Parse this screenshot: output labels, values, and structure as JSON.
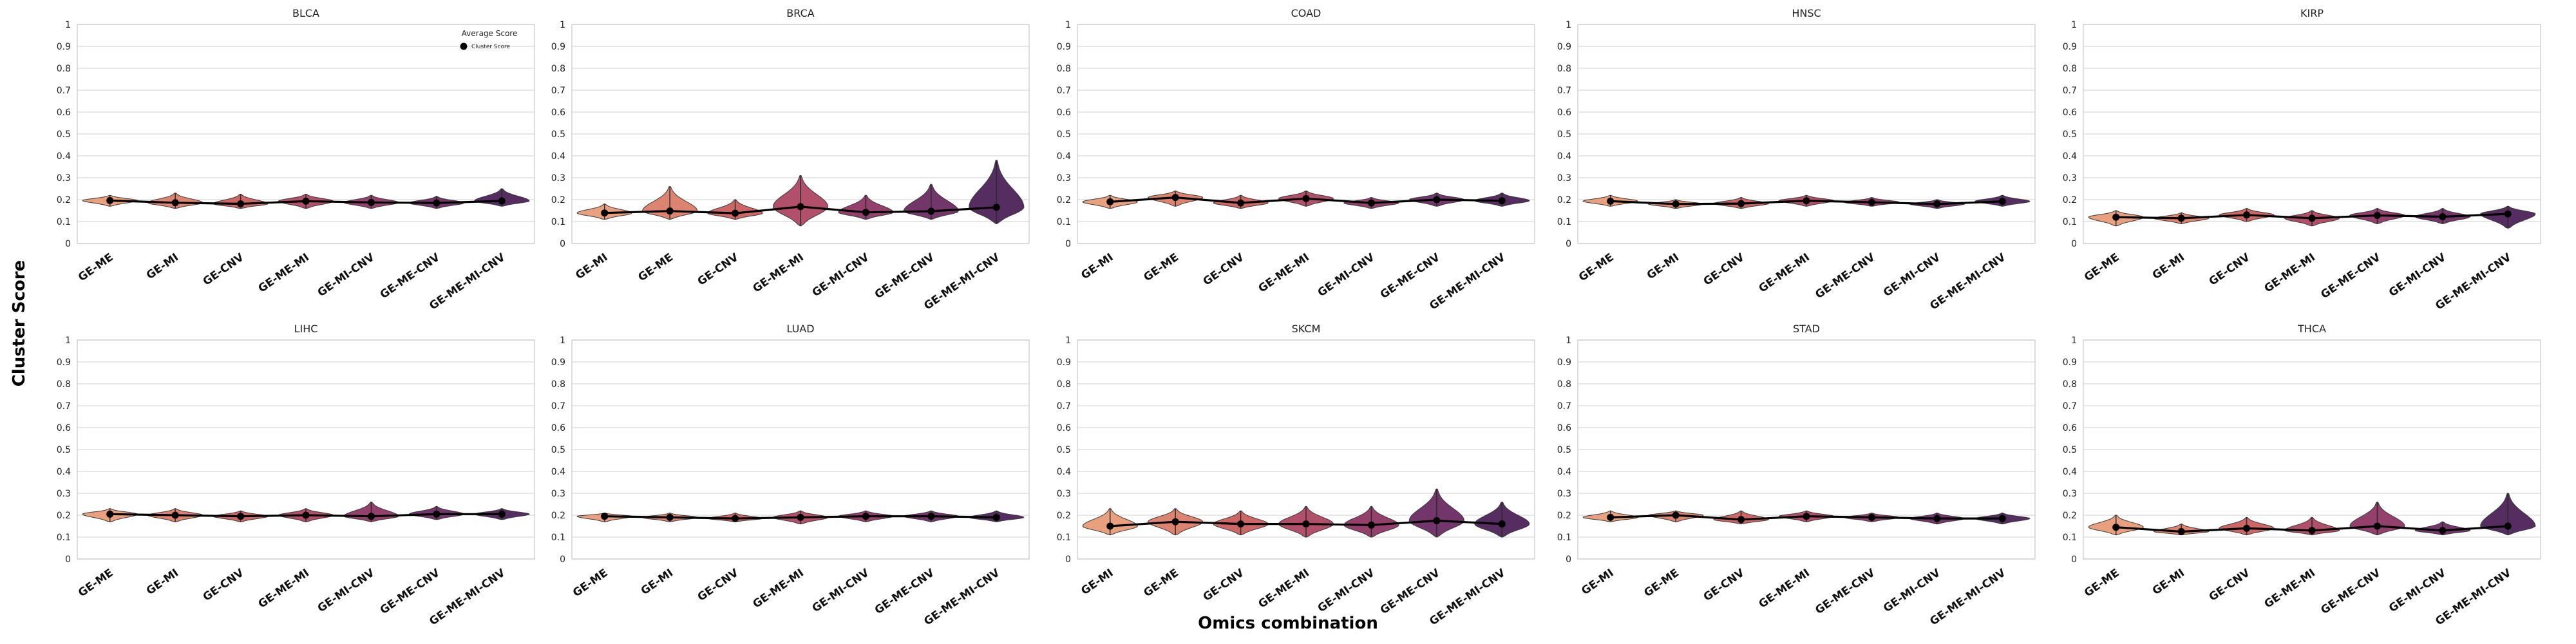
{
  "figure": {
    "ylabel": "Cluster Score",
    "xlabel": "Omics combination",
    "legend": {
      "title": "Average Score",
      "label": "Cluster Score"
    }
  },
  "palette": [
    "#e8a07f",
    "#dc8470",
    "#cc6766",
    "#b24f6a",
    "#93416c",
    "#72366a",
    "#552d61"
  ],
  "chart_data": [
    {
      "type": "violin",
      "title": "BLCA",
      "ylim": [
        0,
        1
      ],
      "yticks": [
        "0",
        "0.1",
        "0.2",
        "0.3",
        "0.4",
        "0.5",
        "0.6",
        "0.7",
        "0.8",
        "0.9",
        "1"
      ],
      "grid": true,
      "legend": "top-right",
      "categories": [
        "GE-ME",
        "GE-MI",
        "GE-CNV",
        "GE-ME-MI",
        "GE-MI-CNV",
        "GE-ME-CNV",
        "GE-ME-MI-CNV"
      ],
      "means": [
        0.196,
        0.186,
        0.181,
        0.193,
        0.187,
        0.185,
        0.194
      ],
      "ranges": [
        [
          0.17,
          0.22
        ],
        [
          0.16,
          0.23
        ],
        [
          0.16,
          0.225
        ],
        [
          0.16,
          0.225
        ],
        [
          0.16,
          0.22
        ],
        [
          0.16,
          0.215
        ],
        [
          0.17,
          0.25
        ]
      ]
    },
    {
      "type": "violin",
      "title": "BRCA",
      "ylim": [
        0,
        1
      ],
      "yticks": [
        "0",
        "0.1",
        "0.2",
        "0.3",
        "0.4",
        "0.5",
        "0.6",
        "0.7",
        "0.8",
        "0.9",
        "1"
      ],
      "grid": true,
      "categories": [
        "GE-MI",
        "GE-ME",
        "GE-CNV",
        "GE-ME-MI",
        "GE-MI-CNV",
        "GE-ME-CNV",
        "GE-ME-MI-CNV"
      ],
      "means": [
        0.139,
        0.148,
        0.138,
        0.168,
        0.142,
        0.147,
        0.165
      ],
      "ranges": [
        [
          0.11,
          0.18
        ],
        [
          0.11,
          0.26
        ],
        [
          0.11,
          0.2
        ],
        [
          0.08,
          0.31
        ],
        [
          0.11,
          0.22
        ],
        [
          0.11,
          0.27
        ],
        [
          0.09,
          0.38
        ]
      ]
    },
    {
      "type": "violin",
      "title": "COAD",
      "ylim": [
        0,
        1
      ],
      "yticks": [
        "0",
        "0.1",
        "0.2",
        "0.3",
        "0.4",
        "0.5",
        "0.6",
        "0.7",
        "0.8",
        "0.9",
        "1"
      ],
      "grid": true,
      "categories": [
        "GE-MI",
        "GE-ME",
        "GE-CNV",
        "GE-ME-MI",
        "GE-MI-CNV",
        "GE-ME-CNV",
        "GE-ME-MI-CNV"
      ],
      "means": [
        0.19,
        0.21,
        0.185,
        0.205,
        0.185,
        0.2,
        0.195
      ],
      "ranges": [
        [
          0.16,
          0.22
        ],
        [
          0.17,
          0.24
        ],
        [
          0.16,
          0.22
        ],
        [
          0.17,
          0.24
        ],
        [
          0.16,
          0.21
        ],
        [
          0.17,
          0.23
        ],
        [
          0.17,
          0.23
        ]
      ]
    },
    {
      "type": "violin",
      "title": "HNSC",
      "ylim": [
        0,
        1
      ],
      "yticks": [
        "0",
        "0.1",
        "0.2",
        "0.3",
        "0.4",
        "0.5",
        "0.6",
        "0.7",
        "0.8",
        "0.9",
        "1"
      ],
      "grid": true,
      "categories": [
        "GE-ME",
        "GE-MI",
        "GE-CNV",
        "GE-ME-MI",
        "GE-ME-CNV",
        "GE-MI-CNV",
        "GE-ME-MI-CNV"
      ],
      "means": [
        0.193,
        0.18,
        0.182,
        0.195,
        0.188,
        0.18,
        0.192
      ],
      "ranges": [
        [
          0.17,
          0.22
        ],
        [
          0.16,
          0.2
        ],
        [
          0.16,
          0.21
        ],
        [
          0.17,
          0.22
        ],
        [
          0.17,
          0.21
        ],
        [
          0.16,
          0.2
        ],
        [
          0.17,
          0.22
        ]
      ]
    },
    {
      "type": "violin",
      "title": "KIRP",
      "ylim": [
        0,
        1
      ],
      "yticks": [
        "0",
        "0.1",
        "0.2",
        "0.3",
        "0.4",
        "0.5",
        "0.6",
        "0.7",
        "0.8",
        "0.9",
        "1"
      ],
      "grid": true,
      "categories": [
        "GE-ME",
        "GE-MI",
        "GE-CNV",
        "GE-ME-MI",
        "GE-ME-CNV",
        "GE-MI-CNV",
        "GE-ME-MI-CNV"
      ],
      "means": [
        0.12,
        0.115,
        0.13,
        0.115,
        0.128,
        0.122,
        0.135
      ],
      "ranges": [
        [
          0.08,
          0.15
        ],
        [
          0.09,
          0.14
        ],
        [
          0.1,
          0.16
        ],
        [
          0.08,
          0.15
        ],
        [
          0.09,
          0.16
        ],
        [
          0.09,
          0.16
        ],
        [
          0.07,
          0.17
        ]
      ]
    },
    {
      "type": "violin",
      "title": "LIHC",
      "ylim": [
        0,
        1
      ],
      "yticks": [
        "0",
        "0.1",
        "0.2",
        "0.3",
        "0.4",
        "0.5",
        "0.6",
        "0.7",
        "0.8",
        "0.9",
        "1"
      ],
      "grid": true,
      "categories": [
        "GE-ME",
        "GE-MI",
        "GE-CNV",
        "GE-ME-MI",
        "GE-MI-CNV",
        "GE-ME-CNV",
        "GE-ME-MI-CNV"
      ],
      "means": [
        0.205,
        0.2,
        0.195,
        0.2,
        0.195,
        0.205,
        0.205
      ],
      "ranges": [
        [
          0.17,
          0.23
        ],
        [
          0.17,
          0.23
        ],
        [
          0.17,
          0.22
        ],
        [
          0.17,
          0.23
        ],
        [
          0.17,
          0.26
        ],
        [
          0.18,
          0.24
        ],
        [
          0.18,
          0.23
        ]
      ]
    },
    {
      "type": "violin",
      "title": "LUAD",
      "ylim": [
        0,
        1
      ],
      "yticks": [
        "0",
        "0.1",
        "0.2",
        "0.3",
        "0.4",
        "0.5",
        "0.6",
        "0.7",
        "0.8",
        "0.9",
        "1"
      ],
      "grid": true,
      "categories": [
        "GE-ME",
        "GE-MI",
        "GE-CNV",
        "GE-ME-MI",
        "GE-MI-CNV",
        "GE-ME-CNV",
        "GE-ME-MI-CNV"
      ],
      "means": [
        0.195,
        0.19,
        0.185,
        0.19,
        0.195,
        0.195,
        0.19
      ],
      "ranges": [
        [
          0.17,
          0.21
        ],
        [
          0.17,
          0.21
        ],
        [
          0.17,
          0.21
        ],
        [
          0.16,
          0.22
        ],
        [
          0.17,
          0.22
        ],
        [
          0.17,
          0.22
        ],
        [
          0.17,
          0.22
        ]
      ]
    },
    {
      "type": "violin",
      "title": "SKCM",
      "ylim": [
        0,
        1
      ],
      "yticks": [
        "0",
        "0.1",
        "0.2",
        "0.3",
        "0.4",
        "0.5",
        "0.6",
        "0.7",
        "0.8",
        "0.9",
        "1"
      ],
      "grid": true,
      "categories": [
        "GE-MI",
        "GE-ME",
        "GE-CNV",
        "GE-ME-MI",
        "GE-MI-CNV",
        "GE-ME-CNV",
        "GE-ME-MI-CNV"
      ],
      "means": [
        0.15,
        0.17,
        0.16,
        0.16,
        0.155,
        0.175,
        0.16
      ],
      "ranges": [
        [
          0.11,
          0.23
        ],
        [
          0.11,
          0.23
        ],
        [
          0.11,
          0.22
        ],
        [
          0.1,
          0.24
        ],
        [
          0.1,
          0.24
        ],
        [
          0.1,
          0.32
        ],
        [
          0.1,
          0.26
        ]
      ]
    },
    {
      "type": "violin",
      "title": "STAD",
      "ylim": [
        0,
        1
      ],
      "yticks": [
        "0",
        "0.1",
        "0.2",
        "0.3",
        "0.4",
        "0.5",
        "0.6",
        "0.7",
        "0.8",
        "0.9",
        "1"
      ],
      "grid": true,
      "categories": [
        "GE-MI",
        "GE-ME",
        "GE-CNV",
        "GE-ME-MI",
        "GE-ME-CNV",
        "GE-MI-CNV",
        "GE-ME-MI-CNV"
      ],
      "means": [
        0.19,
        0.2,
        0.18,
        0.195,
        0.19,
        0.185,
        0.185
      ],
      "ranges": [
        [
          0.17,
          0.22
        ],
        [
          0.17,
          0.22
        ],
        [
          0.16,
          0.22
        ],
        [
          0.17,
          0.22
        ],
        [
          0.17,
          0.21
        ],
        [
          0.16,
          0.21
        ],
        [
          0.16,
          0.21
        ]
      ]
    },
    {
      "type": "violin",
      "title": "THCA",
      "ylim": [
        0,
        1
      ],
      "yticks": [
        "0",
        "0.1",
        "0.2",
        "0.3",
        "0.4",
        "0.5",
        "0.6",
        "0.7",
        "0.8",
        "0.9",
        "1"
      ],
      "grid": true,
      "categories": [
        "GE-ME",
        "GE-MI",
        "GE-CNV",
        "GE-ME-MI",
        "GE-ME-CNV",
        "GE-MI-CNV",
        "GE-ME-MI-CNV"
      ],
      "means": [
        0.145,
        0.125,
        0.14,
        0.13,
        0.15,
        0.13,
        0.15
      ],
      "ranges": [
        [
          0.11,
          0.2
        ],
        [
          0.11,
          0.16
        ],
        [
          0.11,
          0.19
        ],
        [
          0.11,
          0.19
        ],
        [
          0.11,
          0.26
        ],
        [
          0.11,
          0.17
        ],
        [
          0.11,
          0.3
        ]
      ]
    }
  ]
}
